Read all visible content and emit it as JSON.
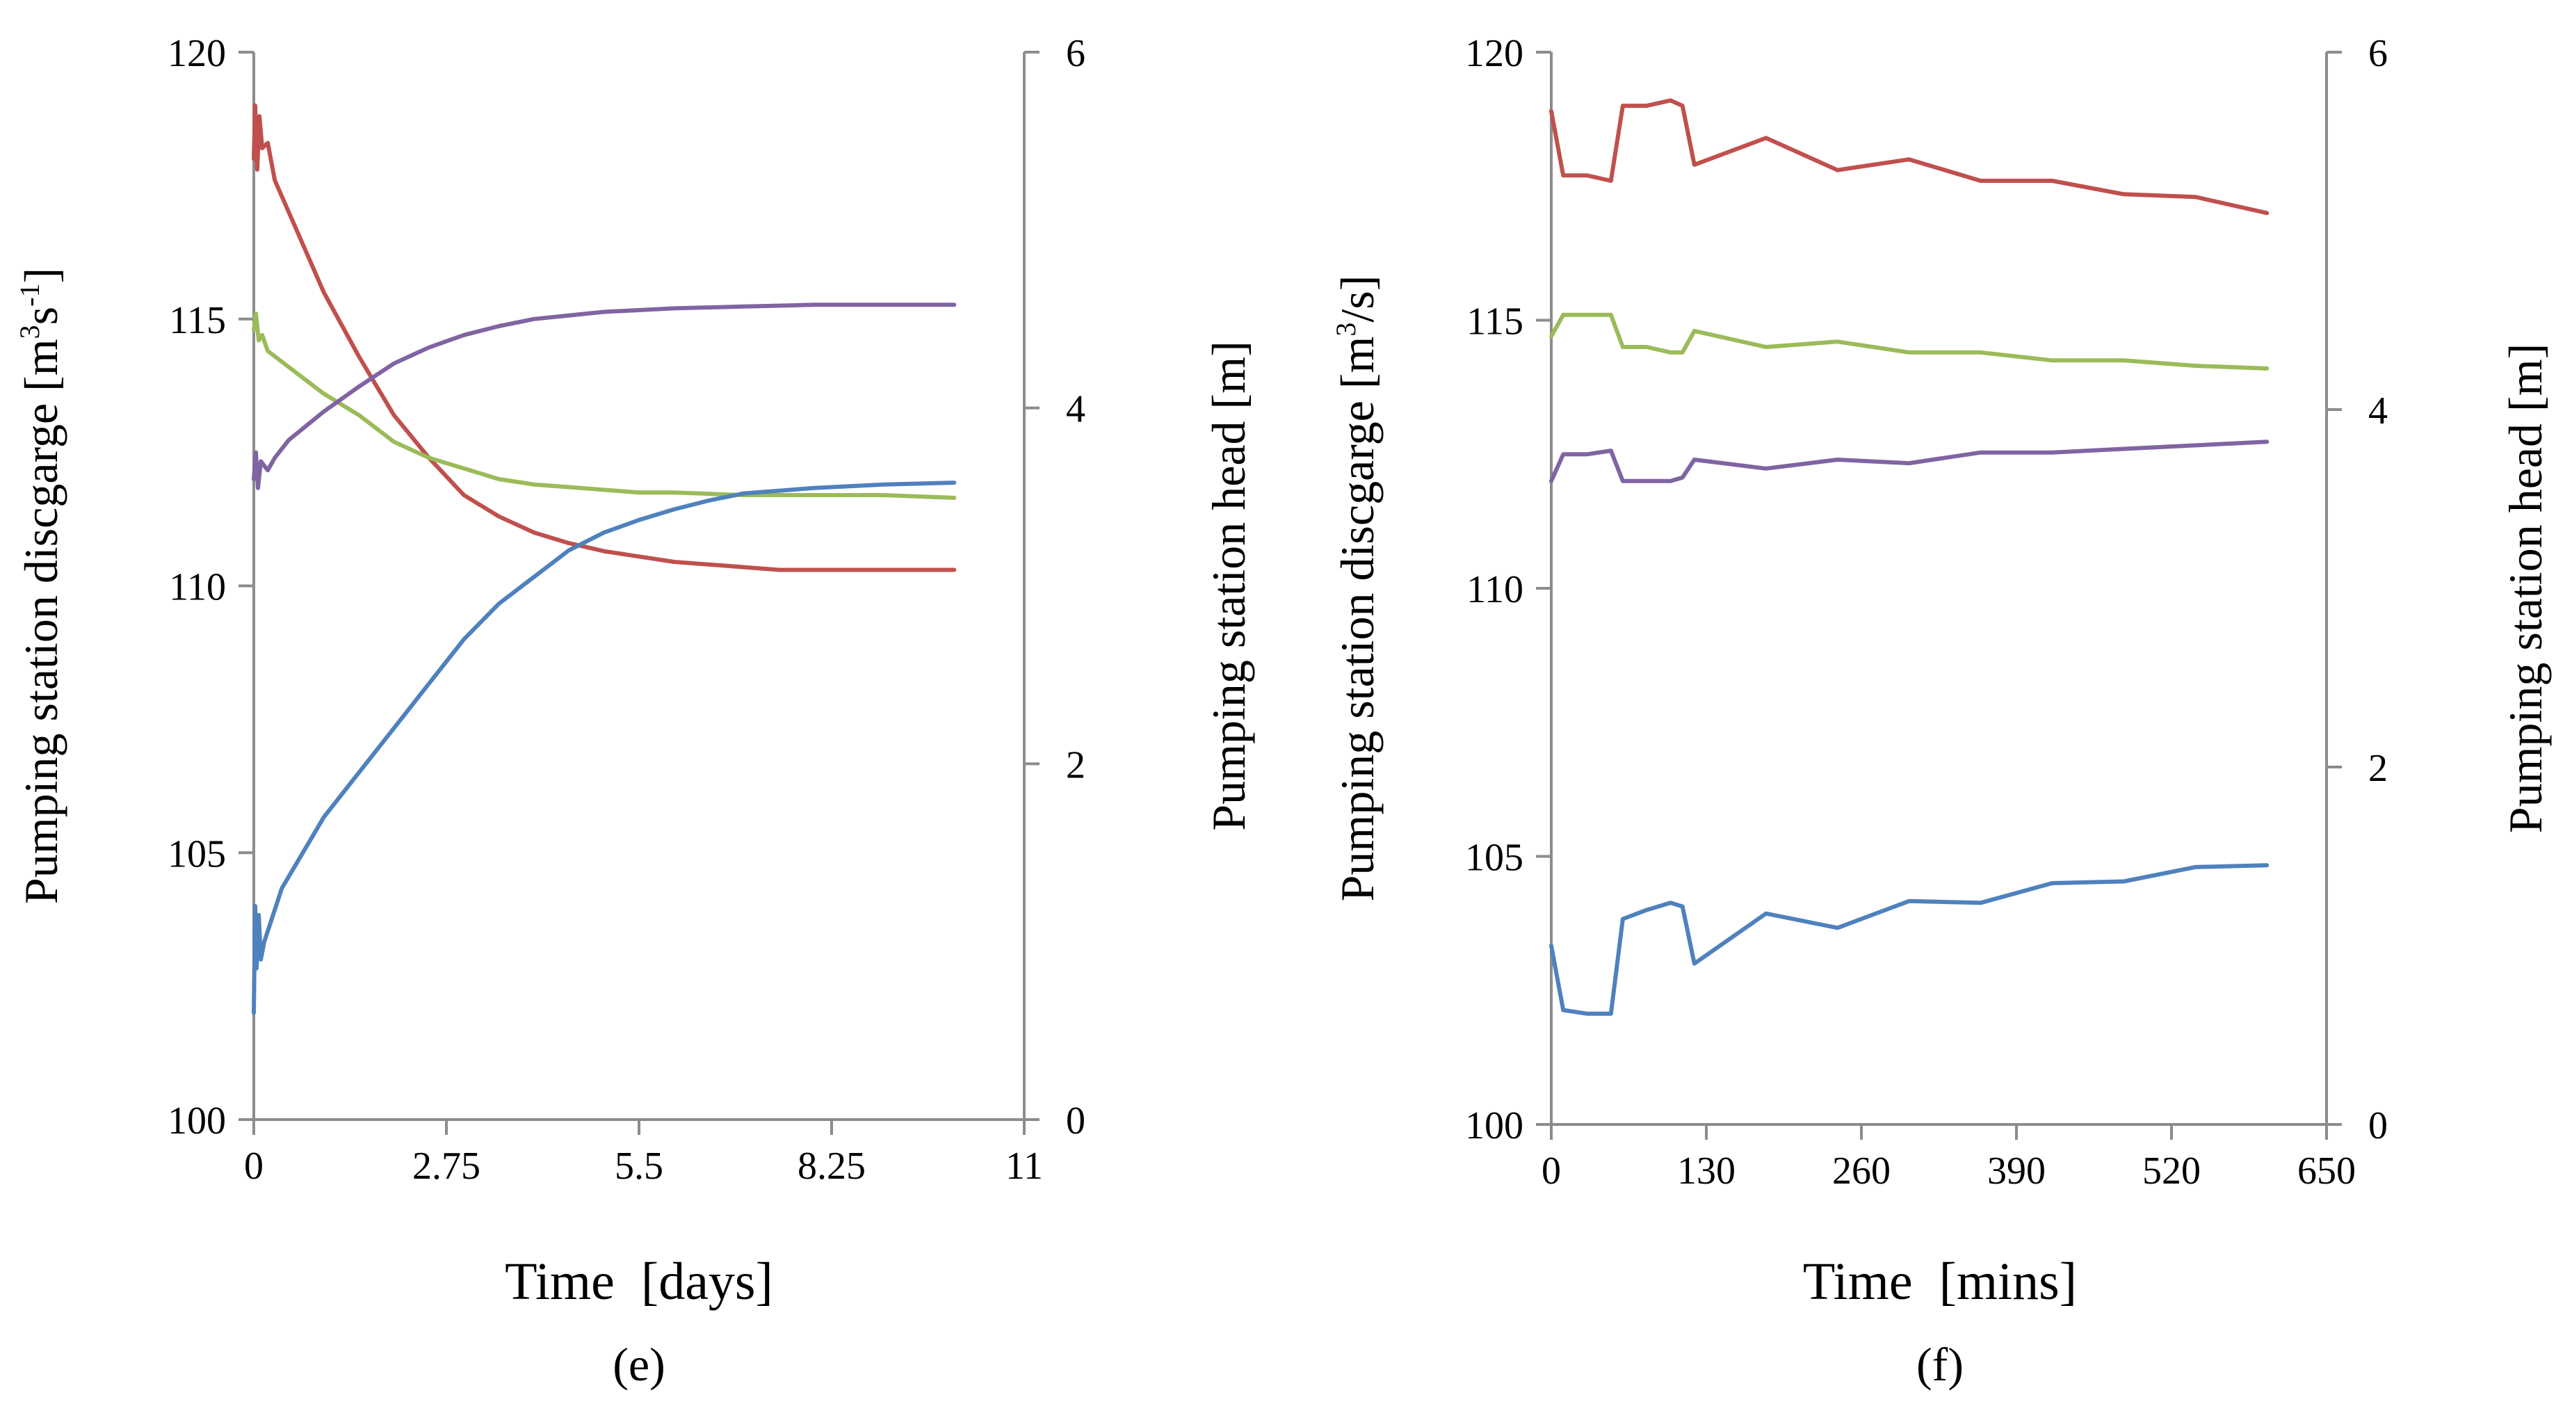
{
  "chart_data": [
    {
      "id": "e",
      "type": "line",
      "caption": "(e)",
      "xlabel": "Time  [days]",
      "ylabel_left": {
        "base": "Pumping station discgarge [m",
        "sup1": "3",
        "mid": "s",
        "sup2": "-1",
        "end": "]"
      },
      "ylabel_right": "Pumping station head [m]",
      "xlim": [
        0,
        11
      ],
      "xticks": [
        "0",
        "2.75",
        "5.5",
        "8.25",
        "11"
      ],
      "ylim_left": [
        100,
        120
      ],
      "yticks_left": [
        "100",
        "105",
        "110",
        "115",
        "120"
      ],
      "ylim_right": [
        0,
        6
      ],
      "yticks_right": [
        "0",
        "2",
        "4",
        "6"
      ],
      "series": [
        {
          "name": "discharge-red",
          "axis": "left",
          "color": "#c0504d",
          "x": [
            0,
            0.02,
            0.05,
            0.08,
            0.12,
            0.2,
            0.3,
            0.5,
            0.8,
            1.0,
            1.5,
            2.0,
            2.5,
            3.0,
            3.5,
            4.0,
            4.5,
            5.0,
            5.5,
            6.0,
            6.5,
            7.0,
            7.5,
            8.0,
            8.5,
            9.0,
            9.5,
            10.0
          ],
          "y": [
            118.0,
            119.0,
            117.8,
            118.8,
            118.2,
            118.3,
            117.6,
            117.0,
            116.1,
            115.5,
            114.3,
            113.2,
            112.4,
            111.7,
            111.3,
            111.0,
            110.8,
            110.65,
            110.55,
            110.45,
            110.4,
            110.35,
            110.3,
            110.3,
            110.3,
            110.3,
            110.3,
            110.3
          ]
        },
        {
          "name": "discharge-green",
          "axis": "left",
          "color": "#9bbb59",
          "x": [
            0,
            0.03,
            0.07,
            0.12,
            0.2,
            0.4,
            0.7,
            1.0,
            1.5,
            2.0,
            2.5,
            3.0,
            3.5,
            4.0,
            4.5,
            5.0,
            5.5,
            6.0,
            7.0,
            8.0,
            9.0,
            10.0
          ],
          "y": [
            114.8,
            115.1,
            114.6,
            114.7,
            114.4,
            114.2,
            113.9,
            113.6,
            113.2,
            112.7,
            112.4,
            112.2,
            112.0,
            111.9,
            111.85,
            111.8,
            111.75,
            111.75,
            111.7,
            111.7,
            111.7,
            111.65
          ]
        },
        {
          "name": "head-purple",
          "axis": "right",
          "color": "#8064a2",
          "x": [
            0,
            0.03,
            0.06,
            0.1,
            0.2,
            0.3,
            0.5,
            1.0,
            1.5,
            2.0,
            2.5,
            3.0,
            3.5,
            4.0,
            4.5,
            5.0,
            6.0,
            7.0,
            8.0,
            9.0,
            10.0
          ],
          "y": [
            3.6,
            3.75,
            3.55,
            3.7,
            3.65,
            3.72,
            3.82,
            3.98,
            4.12,
            4.25,
            4.34,
            4.41,
            4.46,
            4.5,
            4.52,
            4.54,
            4.56,
            4.57,
            4.58,
            4.58,
            4.58
          ]
        },
        {
          "name": "head-blue",
          "axis": "right",
          "color": "#4f81bd",
          "x": [
            0,
            0.02,
            0.04,
            0.07,
            0.1,
            0.15,
            0.25,
            0.4,
            0.7,
            1.0,
            1.5,
            2.0,
            2.5,
            3.0,
            3.5,
            4.0,
            4.5,
            5.0,
            5.5,
            6.0,
            6.5,
            7.0,
            8.0,
            9.0,
            10.0
          ],
          "y": [
            0.6,
            1.2,
            0.85,
            1.15,
            0.9,
            1.0,
            1.12,
            1.3,
            1.5,
            1.7,
            1.95,
            2.2,
            2.45,
            2.7,
            2.9,
            3.05,
            3.2,
            3.3,
            3.37,
            3.43,
            3.48,
            3.52,
            3.55,
            3.57,
            3.58
          ]
        }
      ]
    },
    {
      "id": "f",
      "type": "line",
      "caption": "(f)",
      "xlabel": "Time  [mins]",
      "ylabel_left": {
        "base": "Pumping station discgarge [m",
        "sup1": "3",
        "mid": "/s",
        "sup2": "",
        "end": "]"
      },
      "ylabel_right": "Pumping station head [m]",
      "xlim": [
        0,
        650
      ],
      "xticks": [
        "0",
        "130",
        "260",
        "390",
        "520",
        "650"
      ],
      "ylim_left": [
        100,
        120
      ],
      "yticks_left": [
        "100",
        "105",
        "110",
        "115",
        "120"
      ],
      "ylim_right": [
        0,
        6
      ],
      "yticks_right": [
        "0",
        "2",
        "4",
        "6"
      ],
      "series": [
        {
          "name": "discharge-red",
          "axis": "left",
          "color": "#c0504d",
          "x": [
            0,
            10,
            30,
            50,
            60,
            80,
            100,
            110,
            120,
            180,
            240,
            300,
            360,
            420,
            480,
            540,
            600
          ],
          "y": [
            118.9,
            117.7,
            117.7,
            117.6,
            119.0,
            119.0,
            119.1,
            119.0,
            117.9,
            118.4,
            117.8,
            118.0,
            117.6,
            117.6,
            117.35,
            117.3,
            117.0
          ]
        },
        {
          "name": "discharge-green",
          "axis": "left",
          "color": "#9bbb59",
          "x": [
            0,
            10,
            30,
            50,
            60,
            80,
            100,
            110,
            120,
            180,
            240,
            300,
            360,
            420,
            480,
            540,
            600
          ],
          "y": [
            114.7,
            115.1,
            115.1,
            115.1,
            114.5,
            114.5,
            114.4,
            114.4,
            114.8,
            114.5,
            114.6,
            114.4,
            114.4,
            114.25,
            114.25,
            114.15,
            114.1
          ]
        },
        {
          "name": "head-purple",
          "axis": "right",
          "color": "#8064a2",
          "x": [
            0,
            10,
            30,
            50,
            60,
            80,
            100,
            110,
            120,
            180,
            240,
            300,
            360,
            420,
            480,
            540,
            600
          ],
          "y": [
            3.6,
            3.75,
            3.75,
            3.77,
            3.6,
            3.6,
            3.6,
            3.62,
            3.72,
            3.67,
            3.72,
            3.7,
            3.76,
            3.76,
            3.78,
            3.8,
            3.82
          ]
        },
        {
          "name": "head-blue",
          "axis": "right",
          "color": "#4f81bd",
          "x": [
            0,
            10,
            30,
            50,
            60,
            80,
            100,
            110,
            120,
            180,
            240,
            300,
            360,
            420,
            480,
            540,
            600
          ],
          "y": [
            1.0,
            0.64,
            0.62,
            0.62,
            1.15,
            1.2,
            1.24,
            1.22,
            0.9,
            1.18,
            1.1,
            1.25,
            1.24,
            1.35,
            1.36,
            1.44,
            1.45
          ]
        }
      ]
    }
  ]
}
